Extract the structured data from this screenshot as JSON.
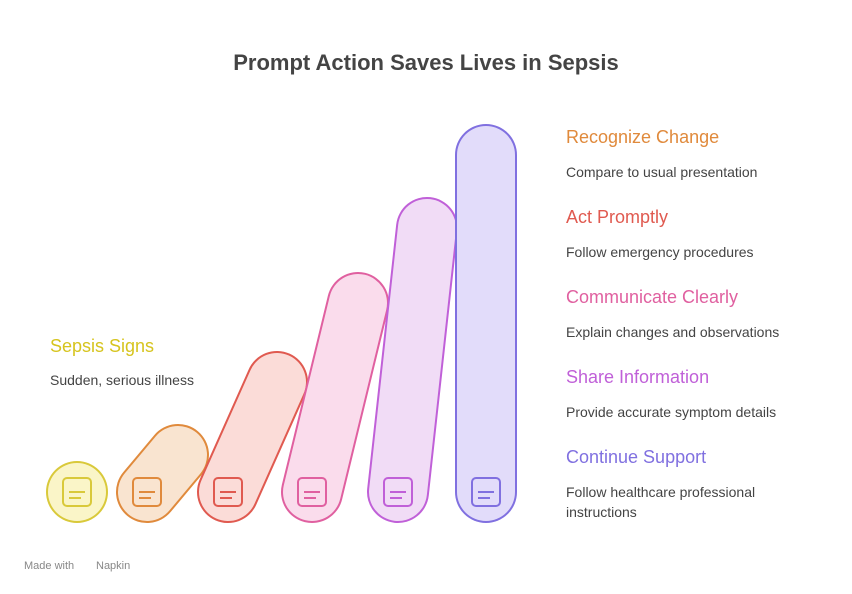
{
  "header": {
    "title": "Prompt Action Saves Lives in Sepsis"
  },
  "start": {
    "heading": "Sepsis Signs",
    "text": "Sudden, serious illness"
  },
  "steps": [
    {
      "heading": "Recognize Change",
      "text": "Compare to usual presentation"
    },
    {
      "heading": "Act Promptly",
      "text": "Follow emergency procedures"
    },
    {
      "heading": "Communicate Clearly",
      "text": "Explain changes and observations"
    },
    {
      "heading": "Share Information",
      "text": "Provide accurate symptom details"
    },
    {
      "heading": "Continue Support",
      "text": "Follow healthcare professional instructions"
    }
  ],
  "footer": {
    "prefix": "Made with",
    "brand": "Napkin"
  }
}
